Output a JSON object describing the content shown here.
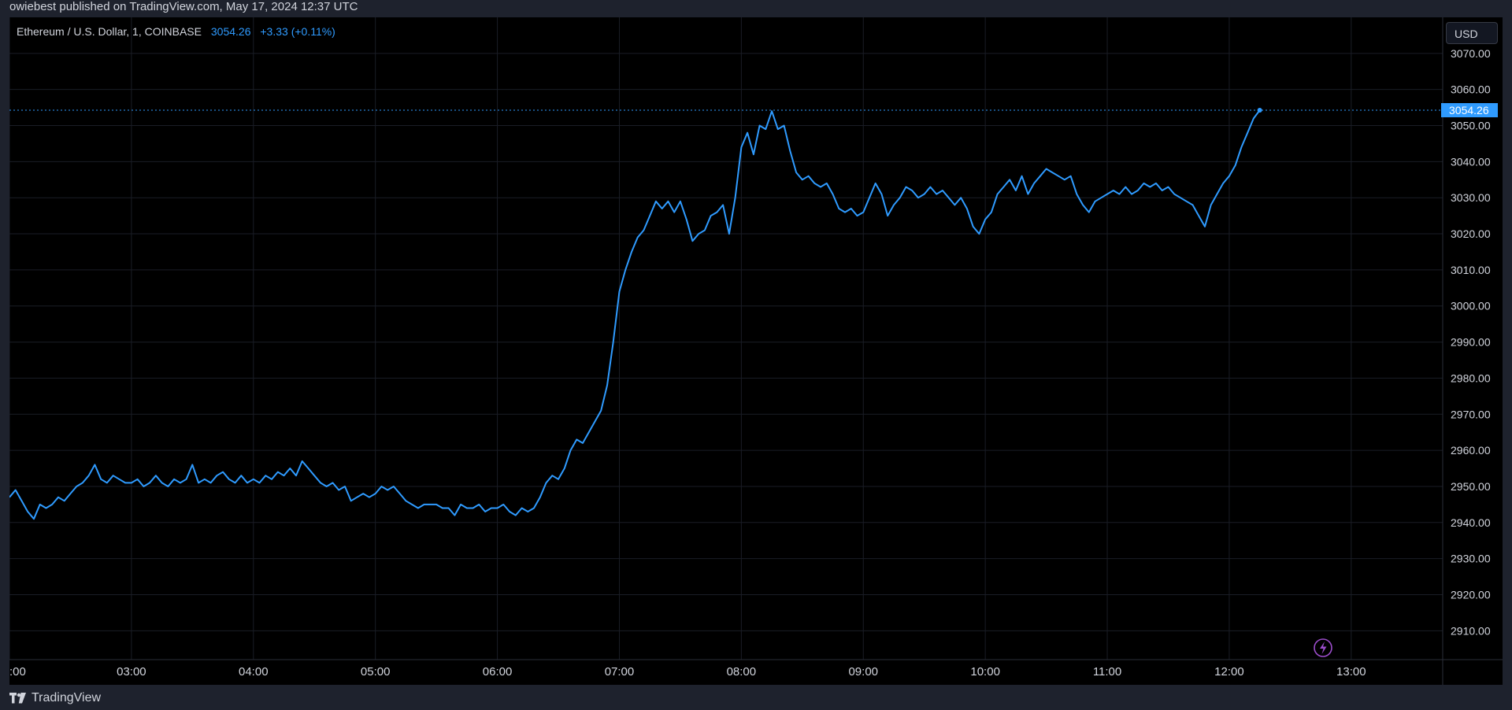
{
  "header": {
    "published_text": "owiebest published on TradingView.com, May 17, 2024 12:37 UTC"
  },
  "legend": {
    "symbol": "Ethereum / U.S. Dollar, 1, COINBASE",
    "price": "3054.26",
    "change": "+3.33 (+0.11%)"
  },
  "currency_button": "USD",
  "footer": {
    "brand": "TradingView"
  },
  "colors": {
    "line": "#2f9bff",
    "background": "#000000",
    "grid": "#1a1d26",
    "axis_text": "#d1d4dc",
    "last_price_tag": "#2f9bff"
  },
  "chart_data": {
    "type": "line",
    "title": "",
    "xlabel": "",
    "ylabel": "",
    "x_ticks": [
      ":00",
      "03:00",
      "04:00",
      "05:00",
      "06:00",
      "07:00",
      "08:00",
      "09:00",
      "10:00",
      "11:00",
      "12:00",
      "13:00"
    ],
    "y_ticks": [
      "2910.00",
      "2920.00",
      "2930.00",
      "2940.00",
      "2950.00",
      "2960.00",
      "2970.00",
      "2980.00",
      "2990.00",
      "3000.00",
      "3010.00",
      "3020.00",
      "3030.00",
      "3040.00",
      "3050.00",
      "3060.00",
      "3070.00"
    ],
    "ylim": [
      2902,
      3080
    ],
    "xlim": [
      "02:00",
      "13:45"
    ],
    "last_price": 3054.26,
    "last_price_label": "3054.26",
    "grid": true,
    "series": [
      {
        "values": [
          [
            "02:00",
            2947
          ],
          [
            "02:03",
            2949
          ],
          [
            "02:06",
            2946
          ],
          [
            "02:09",
            2943
          ],
          [
            "02:12",
            2941
          ],
          [
            "02:15",
            2945
          ],
          [
            "02:18",
            2944
          ],
          [
            "02:21",
            2945
          ],
          [
            "02:24",
            2947
          ],
          [
            "02:27",
            2946
          ],
          [
            "02:30",
            2948
          ],
          [
            "02:33",
            2950
          ],
          [
            "02:36",
            2951
          ],
          [
            "02:39",
            2953
          ],
          [
            "02:42",
            2956
          ],
          [
            "02:45",
            2952
          ],
          [
            "02:48",
            2951
          ],
          [
            "02:51",
            2953
          ],
          [
            "02:54",
            2952
          ],
          [
            "02:57",
            2951
          ],
          [
            "03:00",
            2951
          ],
          [
            "03:03",
            2952
          ],
          [
            "03:06",
            2950
          ],
          [
            "03:09",
            2951
          ],
          [
            "03:12",
            2953
          ],
          [
            "03:15",
            2951
          ],
          [
            "03:18",
            2950
          ],
          [
            "03:21",
            2952
          ],
          [
            "03:24",
            2951
          ],
          [
            "03:27",
            2952
          ],
          [
            "03:30",
            2956
          ],
          [
            "03:33",
            2951
          ],
          [
            "03:36",
            2952
          ],
          [
            "03:39",
            2951
          ],
          [
            "03:42",
            2953
          ],
          [
            "03:45",
            2954
          ],
          [
            "03:48",
            2952
          ],
          [
            "03:51",
            2951
          ],
          [
            "03:54",
            2953
          ],
          [
            "03:57",
            2951
          ],
          [
            "04:00",
            2952
          ],
          [
            "04:03",
            2951
          ],
          [
            "04:06",
            2953
          ],
          [
            "04:09",
            2952
          ],
          [
            "04:12",
            2954
          ],
          [
            "04:15",
            2953
          ],
          [
            "04:18",
            2955
          ],
          [
            "04:21",
            2953
          ],
          [
            "04:24",
            2957
          ],
          [
            "04:27",
            2955
          ],
          [
            "04:30",
            2953
          ],
          [
            "04:33",
            2951
          ],
          [
            "04:36",
            2950
          ],
          [
            "04:39",
            2951
          ],
          [
            "04:42",
            2949
          ],
          [
            "04:45",
            2950
          ],
          [
            "04:48",
            2946
          ],
          [
            "04:51",
            2947
          ],
          [
            "04:54",
            2948
          ],
          [
            "04:57",
            2947
          ],
          [
            "05:00",
            2948
          ],
          [
            "05:03",
            2950
          ],
          [
            "05:06",
            2949
          ],
          [
            "05:09",
            2950
          ],
          [
            "05:12",
            2948
          ],
          [
            "05:15",
            2946
          ],
          [
            "05:18",
            2945
          ],
          [
            "05:21",
            2944
          ],
          [
            "05:24",
            2945
          ],
          [
            "05:27",
            2945
          ],
          [
            "05:30",
            2945
          ],
          [
            "05:33",
            2944
          ],
          [
            "05:36",
            2944
          ],
          [
            "05:39",
            2942
          ],
          [
            "05:42",
            2945
          ],
          [
            "05:45",
            2944
          ],
          [
            "05:48",
            2944
          ],
          [
            "05:51",
            2945
          ],
          [
            "05:54",
            2943
          ],
          [
            "05:57",
            2944
          ],
          [
            "06:00",
            2944
          ],
          [
            "06:03",
            2945
          ],
          [
            "06:06",
            2943
          ],
          [
            "06:09",
            2942
          ],
          [
            "06:12",
            2944
          ],
          [
            "06:15",
            2943
          ],
          [
            "06:18",
            2944
          ],
          [
            "06:21",
            2947
          ],
          [
            "06:24",
            2951
          ],
          [
            "06:27",
            2953
          ],
          [
            "06:30",
            2952
          ],
          [
            "06:33",
            2955
          ],
          [
            "06:36",
            2960
          ],
          [
            "06:39",
            2963
          ],
          [
            "06:42",
            2962
          ],
          [
            "06:45",
            2965
          ],
          [
            "06:48",
            2968
          ],
          [
            "06:51",
            2971
          ],
          [
            "06:54",
            2978
          ],
          [
            "06:57",
            2990
          ],
          [
            "07:00",
            3004
          ],
          [
            "07:03",
            3010
          ],
          [
            "07:06",
            3015
          ],
          [
            "07:09",
            3019
          ],
          [
            "07:12",
            3021
          ],
          [
            "07:15",
            3025
          ],
          [
            "07:18",
            3029
          ],
          [
            "07:21",
            3027
          ],
          [
            "07:24",
            3029
          ],
          [
            "07:27",
            3026
          ],
          [
            "07:30",
            3029
          ],
          [
            "07:33",
            3024
          ],
          [
            "07:36",
            3018
          ],
          [
            "07:39",
            3020
          ],
          [
            "07:42",
            3021
          ],
          [
            "07:45",
            3025
          ],
          [
            "07:48",
            3026
          ],
          [
            "07:51",
            3028
          ],
          [
            "07:54",
            3020
          ],
          [
            "07:57",
            3030
          ],
          [
            "08:00",
            3044
          ],
          [
            "08:03",
            3048
          ],
          [
            "08:06",
            3042
          ],
          [
            "08:09",
            3050
          ],
          [
            "08:12",
            3049
          ],
          [
            "08:15",
            3054
          ],
          [
            "08:18",
            3049
          ],
          [
            "08:21",
            3050
          ],
          [
            "08:24",
            3043
          ],
          [
            "08:27",
            3037
          ],
          [
            "08:30",
            3035
          ],
          [
            "08:33",
            3036
          ],
          [
            "08:36",
            3034
          ],
          [
            "08:39",
            3033
          ],
          [
            "08:42",
            3034
          ],
          [
            "08:45",
            3031
          ],
          [
            "08:48",
            3027
          ],
          [
            "08:51",
            3026
          ],
          [
            "08:54",
            3027
          ],
          [
            "08:57",
            3025
          ],
          [
            "09:00",
            3026
          ],
          [
            "09:03",
            3030
          ],
          [
            "09:06",
            3034
          ],
          [
            "09:09",
            3031
          ],
          [
            "09:12",
            3025
          ],
          [
            "09:15",
            3028
          ],
          [
            "09:18",
            3030
          ],
          [
            "09:21",
            3033
          ],
          [
            "09:24",
            3032
          ],
          [
            "09:27",
            3030
          ],
          [
            "09:30",
            3031
          ],
          [
            "09:33",
            3033
          ],
          [
            "09:36",
            3031
          ],
          [
            "09:39",
            3032
          ],
          [
            "09:42",
            3030
          ],
          [
            "09:45",
            3028
          ],
          [
            "09:48",
            3030
          ],
          [
            "09:51",
            3027
          ],
          [
            "09:54",
            3022
          ],
          [
            "09:57",
            3020
          ],
          [
            "10:00",
            3024
          ],
          [
            "10:03",
            3026
          ],
          [
            "10:06",
            3031
          ],
          [
            "10:09",
            3033
          ],
          [
            "10:12",
            3035
          ],
          [
            "10:15",
            3032
          ],
          [
            "10:18",
            3036
          ],
          [
            "10:21",
            3031
          ],
          [
            "10:24",
            3034
          ],
          [
            "10:27",
            3036
          ],
          [
            "10:30",
            3038
          ],
          [
            "10:33",
            3037
          ],
          [
            "10:36",
            3036
          ],
          [
            "10:39",
            3035
          ],
          [
            "10:42",
            3036
          ],
          [
            "10:45",
            3031
          ],
          [
            "10:48",
            3028
          ],
          [
            "10:51",
            3026
          ],
          [
            "10:54",
            3029
          ],
          [
            "10:57",
            3030
          ],
          [
            "11:00",
            3031
          ],
          [
            "11:03",
            3032
          ],
          [
            "11:06",
            3031
          ],
          [
            "11:09",
            3033
          ],
          [
            "11:12",
            3031
          ],
          [
            "11:15",
            3032
          ],
          [
            "11:18",
            3034
          ],
          [
            "11:21",
            3033
          ],
          [
            "11:24",
            3034
          ],
          [
            "11:27",
            3032
          ],
          [
            "11:30",
            3033
          ],
          [
            "11:33",
            3031
          ],
          [
            "11:36",
            3030
          ],
          [
            "11:39",
            3029
          ],
          [
            "11:42",
            3028
          ],
          [
            "11:45",
            3025
          ],
          [
            "11:48",
            3022
          ],
          [
            "11:51",
            3028
          ],
          [
            "11:54",
            3031
          ],
          [
            "11:57",
            3034
          ],
          [
            "12:00",
            3036
          ],
          [
            "12:03",
            3039
          ],
          [
            "12:06",
            3044
          ],
          [
            "12:09",
            3048
          ],
          [
            "12:12",
            3052
          ],
          [
            "12:15",
            3054.26
          ]
        ]
      }
    ]
  }
}
